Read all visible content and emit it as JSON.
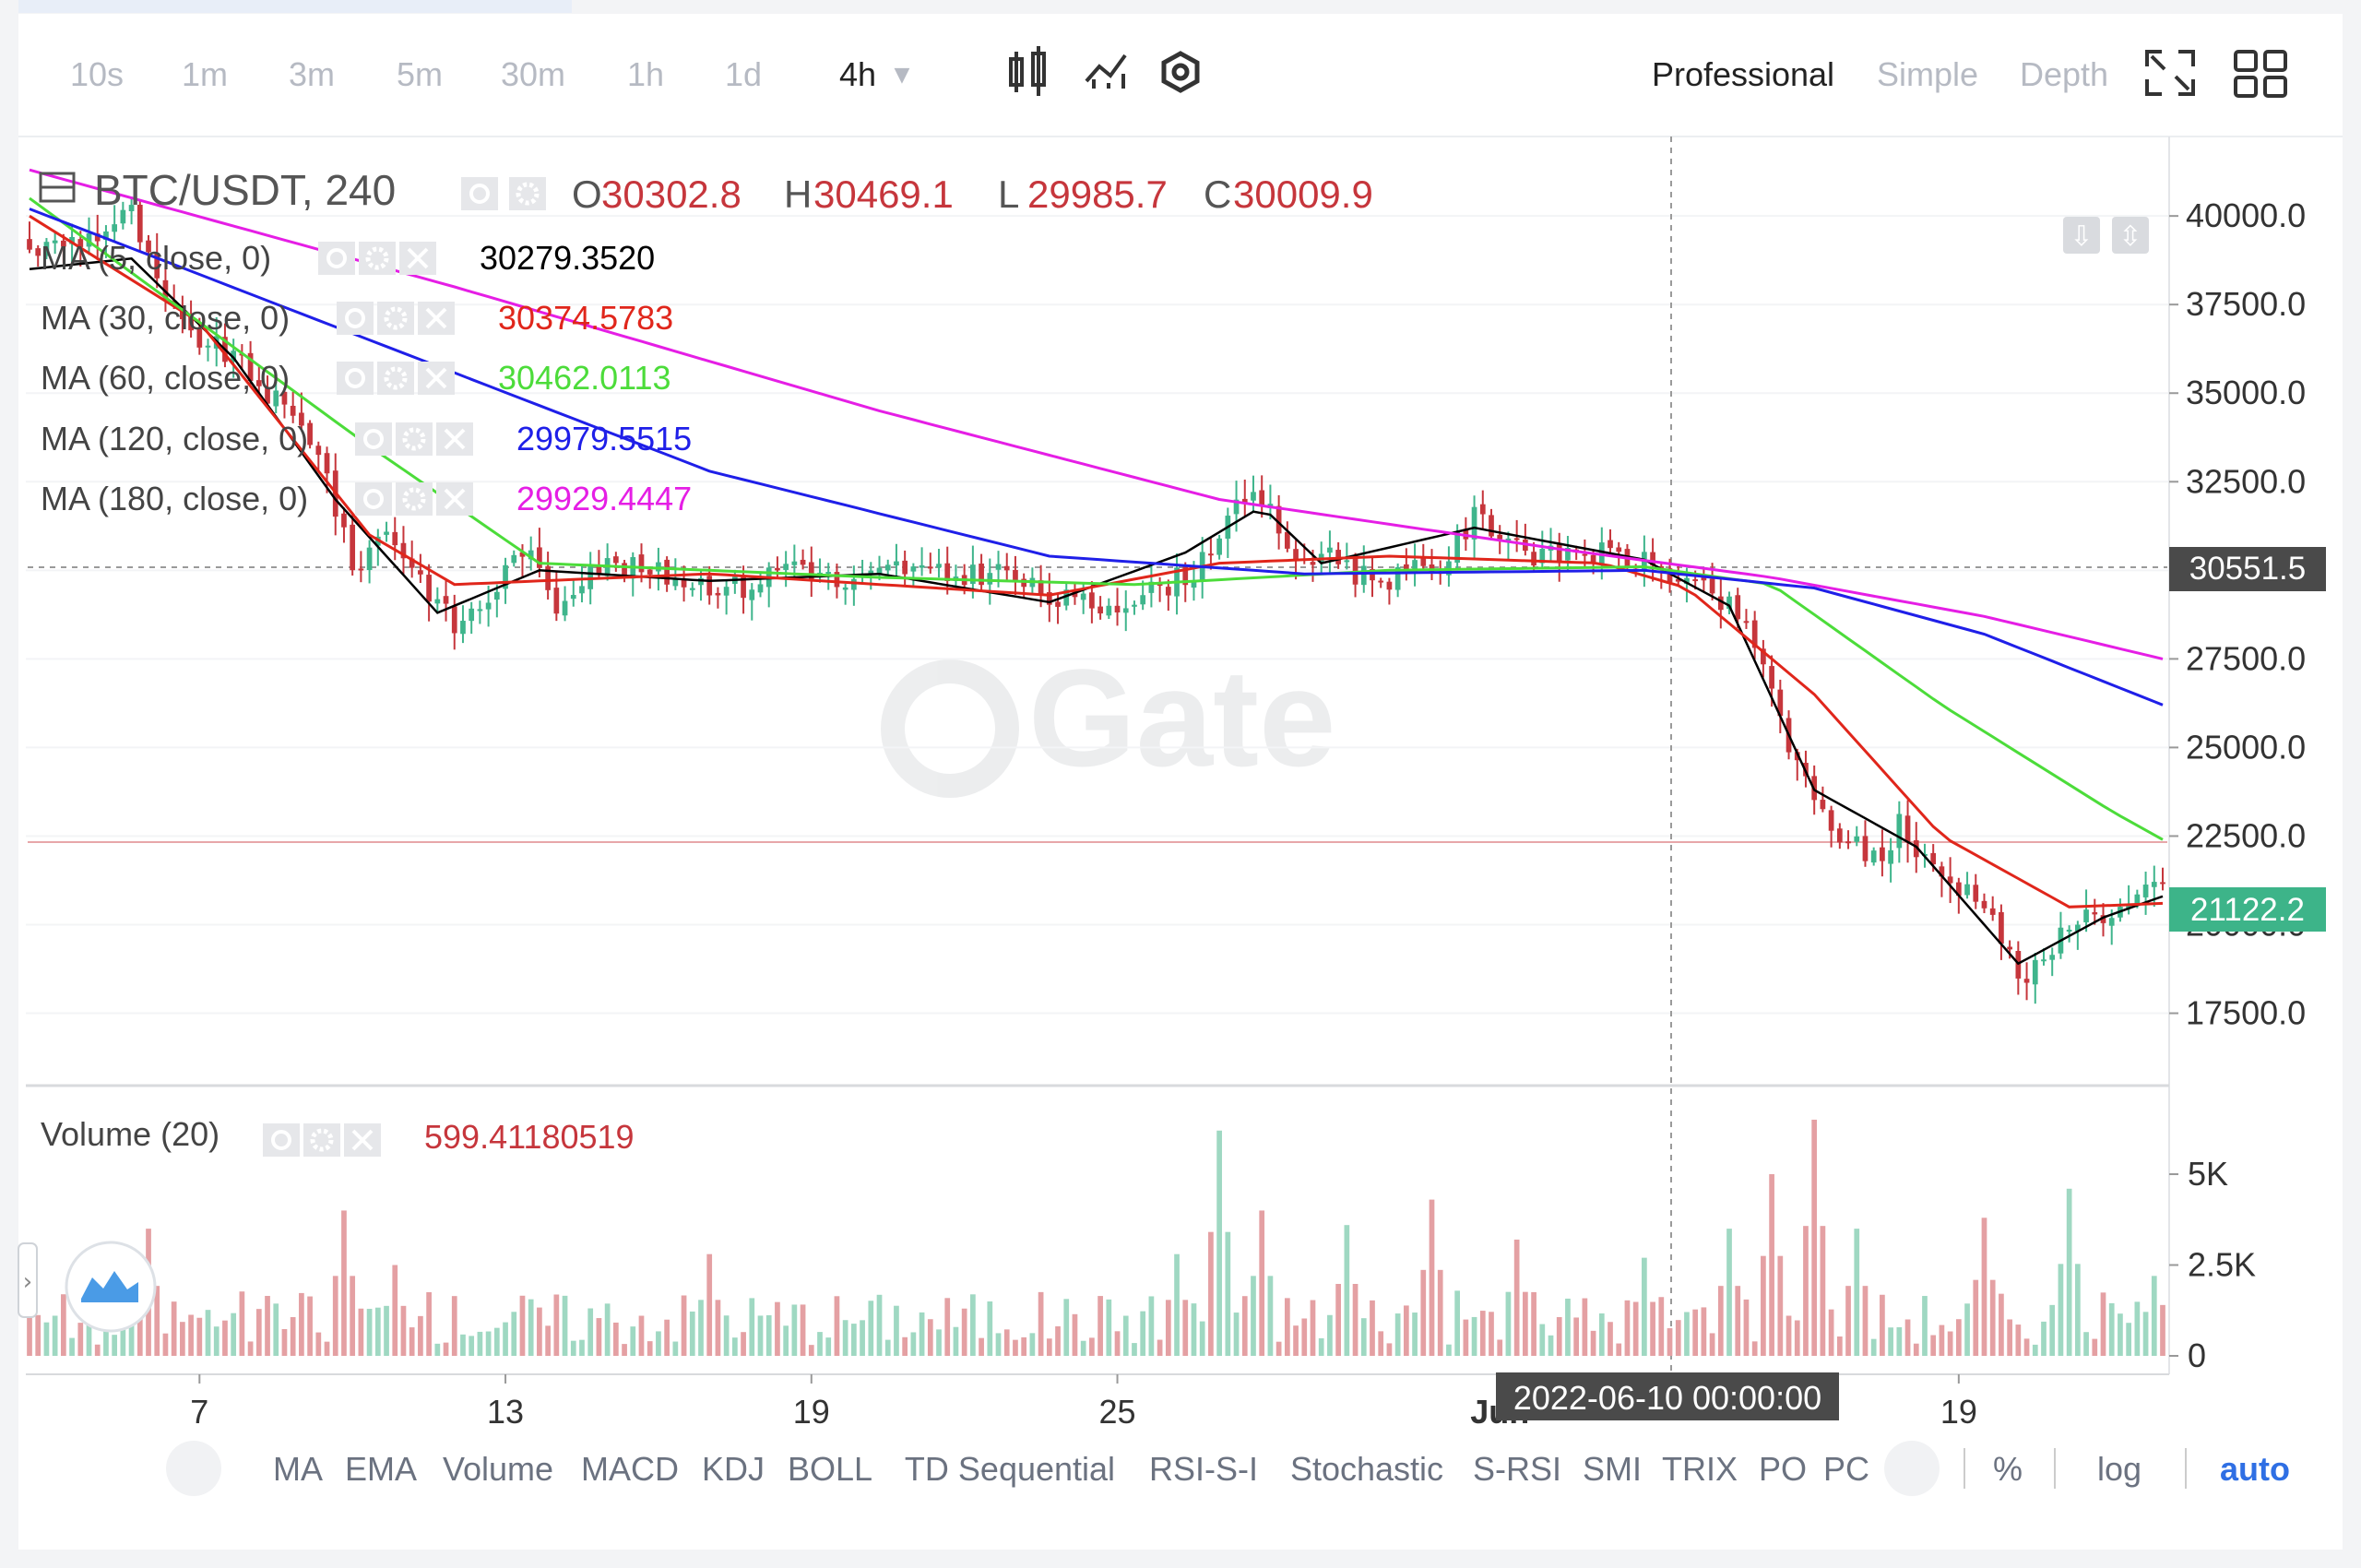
{
  "toolbar": {
    "intervals": [
      "10s",
      "1m",
      "3m",
      "5m",
      "30m",
      "1h",
      "1d"
    ],
    "active_interval": "4h",
    "views": [
      "Professional",
      "Simple",
      "Depth"
    ],
    "active_view": "Professional"
  },
  "legend": {
    "symbol": "BTC/USDT, 240",
    "ohlc": [
      {
        "k": "O",
        "v": "30302.8"
      },
      {
        "k": "H",
        "v": "30469.1"
      },
      {
        "k": "L",
        "v": "29985.7"
      },
      {
        "k": "C",
        "v": "30009.9"
      }
    ],
    "ma": [
      {
        "label": "MA (5, close, 0)",
        "value": "30279.3520",
        "color": "#000000"
      },
      {
        "label": "MA (30, close, 0)",
        "value": "30374.5783",
        "color": "#e0261b"
      },
      {
        "label": "MA (60, close, 0)",
        "value": "30462.0113",
        "color": "#4cdc3a"
      },
      {
        "label": "MA (120, close, 0)",
        "value": "29979.5515",
        "color": "#1f1fe8"
      },
      {
        "label": "MA (180, close, 0)",
        "value": "29929.4447",
        "color": "#e51ee5"
      }
    ],
    "volume_label": "Volume (20)",
    "volume_value": "599.41180519"
  },
  "price_badges": {
    "crosshair": "30551.5",
    "last": "21122.2"
  },
  "time_badge": "2022-06-10 00:00:00",
  "bottom_bar": {
    "indicators": [
      "MA",
      "EMA",
      "Volume",
      "MACD",
      "KDJ",
      "BOLL",
      "TD Sequential",
      "RSI-S-I",
      "Stochastic",
      "S-RSI",
      "SMI",
      "TRIX",
      "PO",
      "PC"
    ],
    "options": [
      "%",
      "log",
      "auto"
    ],
    "active_option": "auto"
  },
  "watermark": "Gate",
  "colors": {
    "up": "#3fb58c",
    "down": "#c6363c",
    "up_vol": "#9fd8c2",
    "down_vol": "#e4a0a3",
    "ma5": "#000000",
    "ma30": "#e0261b",
    "ma60": "#4cdc3a",
    "ma120": "#1f1fe8",
    "ma180": "#e51ee5"
  },
  "chart_data": {
    "type": "candlestick",
    "interval": "4h",
    "price_axis": {
      "ylim": [
        15900,
        41800
      ],
      "ticks": [
        "40000.0",
        "37500.0",
        "35000.0",
        "32500.0",
        "30000.0",
        "27500.0",
        "25000.0",
        "22500.0",
        "20000.0",
        "17500.0"
      ]
    },
    "volume_axis": {
      "ylim": [
        0,
        6600
      ],
      "ticks": [
        "5K",
        "2.5K",
        "0"
      ]
    },
    "x_labels": [
      "7",
      "13",
      "19",
      "25",
      "Jun",
      "19"
    ],
    "series_points": [
      [
        0,
        39000
      ],
      [
        8,
        39500
      ],
      [
        12,
        40100
      ],
      [
        15,
        38000
      ],
      [
        18,
        36800
      ],
      [
        24,
        36000
      ],
      [
        28,
        35000
      ],
      [
        34,
        33500
      ],
      [
        38,
        30000
      ],
      [
        42,
        31200
      ],
      [
        46,
        29800
      ],
      [
        50,
        28400
      ],
      [
        54,
        29200
      ],
      [
        58,
        30700
      ],
      [
        62,
        29000
      ],
      [
        66,
        30200
      ],
      [
        72,
        30000
      ],
      [
        78,
        29700
      ],
      [
        84,
        29500
      ],
      [
        90,
        30300
      ],
      [
        96,
        29500
      ],
      [
        102,
        30100
      ],
      [
        108,
        29800
      ],
      [
        114,
        30000
      ],
      [
        120,
        29200
      ],
      [
        126,
        29000
      ],
      [
        132,
        29400
      ],
      [
        137,
        30000
      ],
      [
        141,
        31500
      ],
      [
        143,
        31800
      ],
      [
        145,
        32000
      ],
      [
        147,
        31200
      ],
      [
        150,
        30000
      ],
      [
        153,
        30700
      ],
      [
        156,
        29900
      ],
      [
        160,
        29800
      ],
      [
        166,
        30100
      ],
      [
        170,
        31500
      ],
      [
        174,
        31000
      ],
      [
        178,
        30300
      ],
      [
        182,
        30600
      ],
      [
        186,
        30400
      ],
      [
        190,
        30200
      ],
      [
        195,
        29700
      ],
      [
        198,
        29200
      ],
      [
        201,
        28800
      ],
      [
        203,
        27700
      ],
      [
        205,
        26800
      ],
      [
        207,
        25000
      ],
      [
        210,
        23400
      ],
      [
        214,
        22300
      ],
      [
        218,
        21800
      ],
      [
        220,
        23000
      ],
      [
        222,
        22000
      ],
      [
        226,
        21200
      ],
      [
        230,
        20800
      ],
      [
        234,
        18500
      ],
      [
        237,
        18800
      ],
      [
        240,
        20200
      ],
      [
        246,
        20400
      ],
      [
        251,
        21122
      ]
    ],
    "volume_peaks": [
      [
        14,
        3500
      ],
      [
        37,
        4000
      ],
      [
        43,
        2500
      ],
      [
        80,
        2800
      ],
      [
        135,
        2800
      ],
      [
        140,
        6200
      ],
      [
        145,
        4000
      ],
      [
        155,
        3600
      ],
      [
        165,
        4300
      ],
      [
        175,
        3200
      ],
      [
        190,
        2700
      ],
      [
        200,
        3500
      ],
      [
        205,
        5000
      ],
      [
        210,
        6500
      ],
      [
        215,
        3500
      ],
      [
        230,
        3800
      ],
      [
        240,
        4600
      ],
      [
        250,
        2200
      ]
    ],
    "ma_values": {
      "MA5": [
        [
          0,
          38500
        ],
        [
          12,
          38800
        ],
        [
          24,
          36000
        ],
        [
          36,
          32000
        ],
        [
          48,
          28800
        ],
        [
          60,
          30000
        ],
        [
          80,
          29700
        ],
        [
          100,
          29900
        ],
        [
          120,
          29100
        ],
        [
          136,
          30500
        ],
        [
          145,
          31800
        ],
        [
          152,
          30200
        ],
        [
          170,
          31200
        ],
        [
          190,
          30300
        ],
        [
          200,
          29000
        ],
        [
          210,
          23800
        ],
        [
          222,
          22200
        ],
        [
          234,
          18900
        ],
        [
          244,
          20200
        ],
        [
          251,
          20800
        ]
      ],
      "MA30": [
        [
          0,
          40000
        ],
        [
          20,
          37000
        ],
        [
          40,
          31000
        ],
        [
          50,
          29600
        ],
        [
          80,
          29900
        ],
        [
          120,
          29300
        ],
        [
          140,
          30200
        ],
        [
          160,
          30400
        ],
        [
          185,
          30200
        ],
        [
          195,
          29500
        ],
        [
          210,
          26500
        ],
        [
          225,
          22500
        ],
        [
          240,
          20500
        ],
        [
          251,
          20600
        ]
      ],
      "MA60": [
        [
          0,
          40500
        ],
        [
          40,
          33500
        ],
        [
          60,
          30200
        ],
        [
          100,
          29800
        ],
        [
          130,
          29600
        ],
        [
          160,
          30000
        ],
        [
          190,
          30100
        ],
        [
          205,
          29600
        ],
        [
          225,
          26200
        ],
        [
          245,
          23200
        ],
        [
          251,
          22400
        ]
      ],
      "MA120": [
        [
          0,
          40200
        ],
        [
          40,
          36500
        ],
        [
          80,
          32800
        ],
        [
          120,
          30400
        ],
        [
          150,
          29900
        ],
        [
          190,
          30000
        ],
        [
          210,
          29500
        ],
        [
          230,
          28200
        ],
        [
          251,
          26200
        ]
      ],
      "MA180": [
        [
          0,
          41300
        ],
        [
          50,
          38000
        ],
        [
          100,
          34500
        ],
        [
          140,
          32000
        ],
        [
          180,
          30600
        ],
        [
          205,
          29800
        ],
        [
          230,
          28700
        ],
        [
          251,
          27500
        ]
      ]
    }
  }
}
